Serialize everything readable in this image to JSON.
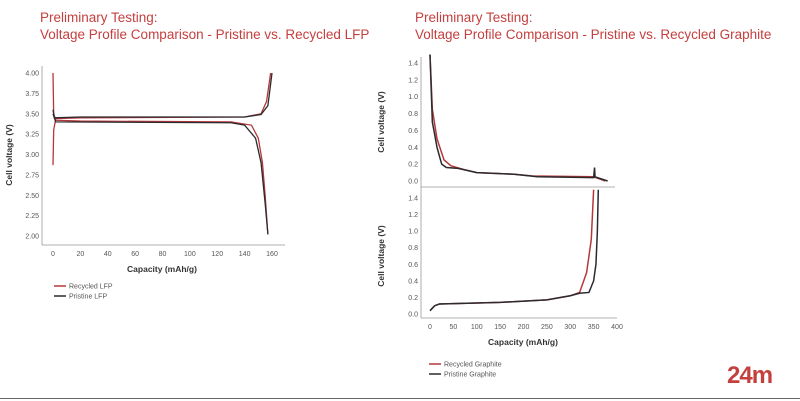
{
  "titles": {
    "left_line1": "Preliminary Testing:",
    "left_line2": "Voltage Profile Comparison - Pristine vs. Recycled LFP",
    "right_line1": "Preliminary Testing:",
    "right_line2": "Voltage Profile Comparison - Pristine vs. Recycled Graphite"
  },
  "logo": "24m",
  "colors": {
    "recycled": "#b5373a",
    "pristine": "#2b2b2e",
    "title": "#c4403f"
  },
  "chart_data": [
    {
      "type": "line",
      "xlabel": "Capacity (mAh/g)",
      "ylabel": "Cell voltage (V)",
      "xlim": [
        -5,
        165
      ],
      "ylim": [
        1.9,
        4.05
      ],
      "xticks": [
        "0",
        "20",
        "40",
        "60",
        "80",
        "100",
        "120",
        "140",
        "160"
      ],
      "yticks": [
        "2.00",
        "2.25",
        "2.50",
        "2.75",
        "3.00",
        "3.25",
        "3.50",
        "3.75",
        "4.00"
      ],
      "legend": "bottom-left",
      "series": [
        {
          "name": "Recycled LFP",
          "color": "recycled",
          "segments": [
            [
              [
                0,
                2.87
              ],
              [
                0.5,
                3.3
              ],
              [
                2,
                3.44
              ],
              [
                20,
                3.45
              ],
              [
                140,
                3.46
              ],
              [
                152,
                3.5
              ],
              [
                156,
                3.65
              ],
              [
                159,
                4.0
              ]
            ],
            [
              [
                0,
                4.0
              ],
              [
                0.5,
                3.5
              ],
              [
                2,
                3.42
              ],
              [
                20,
                3.41
              ],
              [
                130,
                3.4
              ],
              [
                145,
                3.36
              ],
              [
                150,
                3.2
              ],
              [
                153,
                2.9
              ],
              [
                155,
                2.5
              ],
              [
                157,
                2.02
              ]
            ]
          ]
        },
        {
          "name": "Pristine LFP",
          "color": "pristine",
          "segments": [
            [
              [
                0,
                3.55
              ],
              [
                1,
                3.45
              ],
              [
                20,
                3.46
              ],
              [
                140,
                3.46
              ],
              [
                152,
                3.49
              ],
              [
                157,
                3.6
              ],
              [
                160,
                4.0
              ]
            ],
            [
              [
                0,
                3.5
              ],
              [
                2,
                3.4
              ],
              [
                130,
                3.39
              ],
              [
                140,
                3.36
              ],
              [
                148,
                3.2
              ],
              [
                152,
                2.9
              ],
              [
                155,
                2.4
              ],
              [
                157,
                2.02
              ]
            ]
          ]
        }
      ]
    },
    {
      "type": "line",
      "xlabel": "Capacity (mAh/g)",
      "ylabel": "Cell voltage (V)",
      "xlim": [
        -10,
        400
      ],
      "ylim": [
        -0.05,
        1.5
      ],
      "xticks": [
        "0",
        "50",
        "100",
        "150",
        "200",
        "250",
        "300",
        "350",
        "400"
      ],
      "yticks": [
        "0.0",
        "0.2",
        "0.4",
        "0.6",
        "0.8",
        "1.0",
        "1.2",
        "1.4"
      ],
      "legend": "bottom-left",
      "panels": [
        {
          "series": [
            {
              "name": "Recycled Graphite",
              "color": "recycled",
              "points": [
                [
                  0,
                  1.5
                ],
                [
                  5,
                  0.85
                ],
                [
                  15,
                  0.5
                ],
                [
                  30,
                  0.25
                ],
                [
                  45,
                  0.18
                ],
                [
                  70,
                  0.14
                ],
                [
                  100,
                  0.1
                ],
                [
                  180,
                  0.08
                ],
                [
                  220,
                  0.06
                ],
                [
                  350,
                  0.05
                ],
                [
                  365,
                  0.02
                ],
                [
                  375,
                  0
                ]
              ]
            },
            {
              "name": "Pristine Graphite",
              "color": "pristine",
              "points": [
                [
                  0,
                  1.5
                ],
                [
                  5,
                  0.7
                ],
                [
                  15,
                  0.4
                ],
                [
                  25,
                  0.2
                ],
                [
                  35,
                  0.16
                ],
                [
                  60,
                  0.15
                ],
                [
                  100,
                  0.1
                ],
                [
                  180,
                  0.08
                ],
                [
                  230,
                  0.05
                ],
                [
                  350,
                  0.04
                ],
                [
                  352,
                  0.16
                ],
                [
                  353,
                  0.05
                ],
                [
                  380,
                  0
                ]
              ]
            }
          ]
        },
        {
          "series": [
            {
              "name": "Recycled Graphite",
              "color": "recycled",
              "points": [
                [
                  0,
                  0.04
                ],
                [
                  10,
                  0.1
                ],
                [
                  20,
                  0.12
                ],
                [
                  150,
                  0.14
                ],
                [
                  250,
                  0.17
                ],
                [
                  300,
                  0.22
                ],
                [
                  320,
                  0.26
                ],
                [
                  335,
                  0.5
                ],
                [
                  345,
                  0.9
                ],
                [
                  350,
                  1.5
                ]
              ]
            },
            {
              "name": "Pristine Graphite",
              "color": "pristine",
              "points": [
                [
                  0,
                  0.04
                ],
                [
                  10,
                  0.1
                ],
                [
                  20,
                  0.12
                ],
                [
                  150,
                  0.14
                ],
                [
                  250,
                  0.17
                ],
                [
                  300,
                  0.22
                ],
                [
                  320,
                  0.25
                ],
                [
                  340,
                  0.26
                ],
                [
                  350,
                  0.4
                ],
                [
                  355,
                  0.6
                ],
                [
                  358,
                  1.0
                ],
                [
                  360,
                  1.5
                ]
              ]
            }
          ]
        }
      ]
    }
  ]
}
